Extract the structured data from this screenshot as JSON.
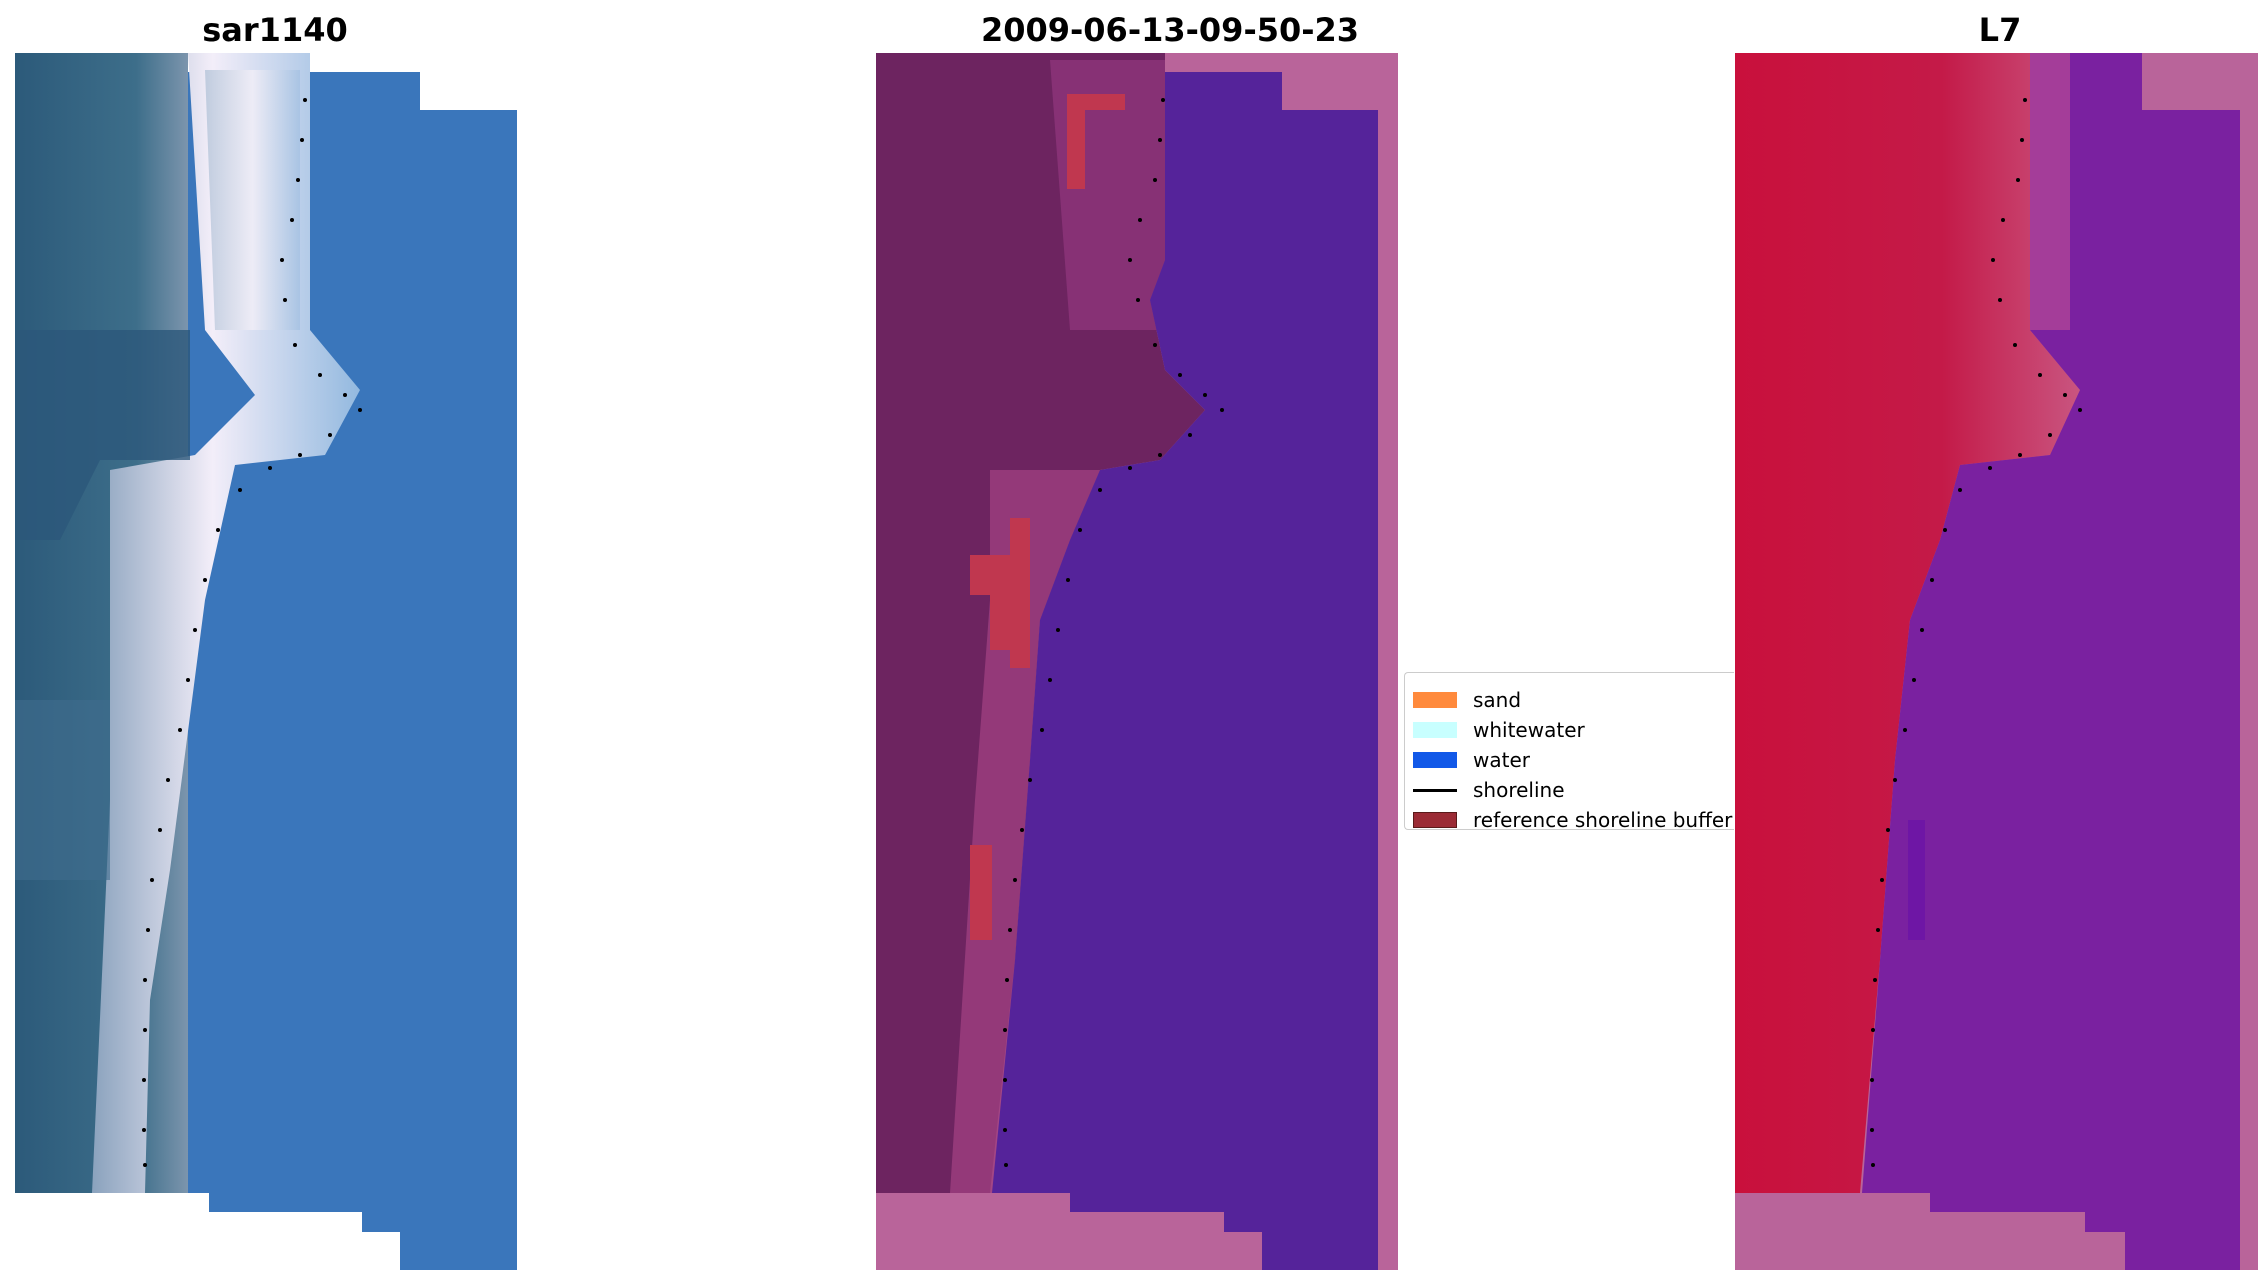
{
  "figure": {
    "panels": [
      {
        "title": "sar1140",
        "kind": "rgb-image"
      },
      {
        "title": "2009-06-13-09-50-23",
        "kind": "classified-image"
      },
      {
        "title": "L7",
        "kind": "index-image"
      }
    ]
  },
  "legend": {
    "items": [
      {
        "label": "sand",
        "color": "#ff8a3d",
        "marker": "patch"
      },
      {
        "label": "whitewater",
        "color": "#c8ffff",
        "marker": "patch"
      },
      {
        "label": "water",
        "color": "#1259e8",
        "marker": "patch"
      },
      {
        "label": "shoreline",
        "color": "#000000",
        "marker": "line"
      },
      {
        "label": "reference shoreline buffer",
        "color": "#9b2b35",
        "marker": "patch"
      }
    ]
  },
  "colors": {
    "rgb_sand": "#d9dcec",
    "rgb_water": "#3a76bb",
    "rgb_land": "#2f5f7d",
    "class_land": "#6d2460",
    "class_water": "#55239a",
    "class_nodata": "#b9649a",
    "class_buffer": "#c0374f",
    "index_land": "#c8123f",
    "index_water": "#7a21a0",
    "index_nodata": "#b9649a"
  }
}
